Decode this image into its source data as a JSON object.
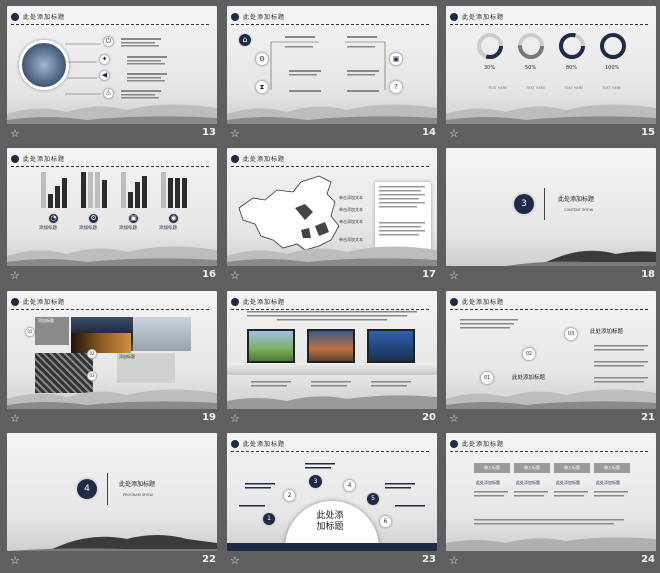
{
  "slides": [
    {
      "number": "13",
      "title": "此处添加标题"
    },
    {
      "number": "14",
      "title": "此处添加标题"
    },
    {
      "number": "15",
      "title": "此处添加标题",
      "percents": [
        "30%",
        "50%",
        "80%",
        "100%"
      ],
      "legend": [
        "TEXT HERE",
        "TEXT HERE",
        "TEXT HERE",
        "TEXT HERE"
      ]
    },
    {
      "number": "16",
      "title": "此处添加标题",
      "captions": [
        "添加标题",
        "添加标题",
        "添加标题",
        "添加标题"
      ]
    },
    {
      "number": "17",
      "title": "此处添加标题",
      "map_labels": [
        "单击添加文本",
        "单击添加文本",
        "单击添加文本",
        "单击添加文本"
      ]
    },
    {
      "number": "18",
      "circle": "3",
      "heading": "此处添加标题",
      "sub": "CONTENT SHOW"
    },
    {
      "number": "19",
      "title": "此处添加标题",
      "labels": [
        "添加标题",
        "添加标题"
      ],
      "steps": [
        "01",
        "02",
        "03"
      ]
    },
    {
      "number": "20",
      "title": "此处添加标题"
    },
    {
      "number": "21",
      "title": "此处添加标题",
      "steps": [
        "03",
        "02",
        "01"
      ],
      "headings": [
        "此处添加标题",
        "此处添加标题"
      ]
    },
    {
      "number": "22",
      "circle": "4",
      "heading": "此处添加标题",
      "sub": "PROGRAM SHOW"
    },
    {
      "number": "23",
      "title": "此处添加标题",
      "center": "此处添加标题",
      "steps": [
        "1",
        "2",
        "3",
        "4",
        "5",
        "6"
      ]
    },
    {
      "number": "24",
      "title": "此处添加标题",
      "arrows": [
        "输入标题",
        "输入标题",
        "输入标题",
        "输入标题"
      ],
      "sub": [
        "此处添加标题",
        "此处添加标题",
        "此处添加标题",
        "此处添加标题"
      ]
    }
  ],
  "icons": {
    "star": "☆"
  }
}
